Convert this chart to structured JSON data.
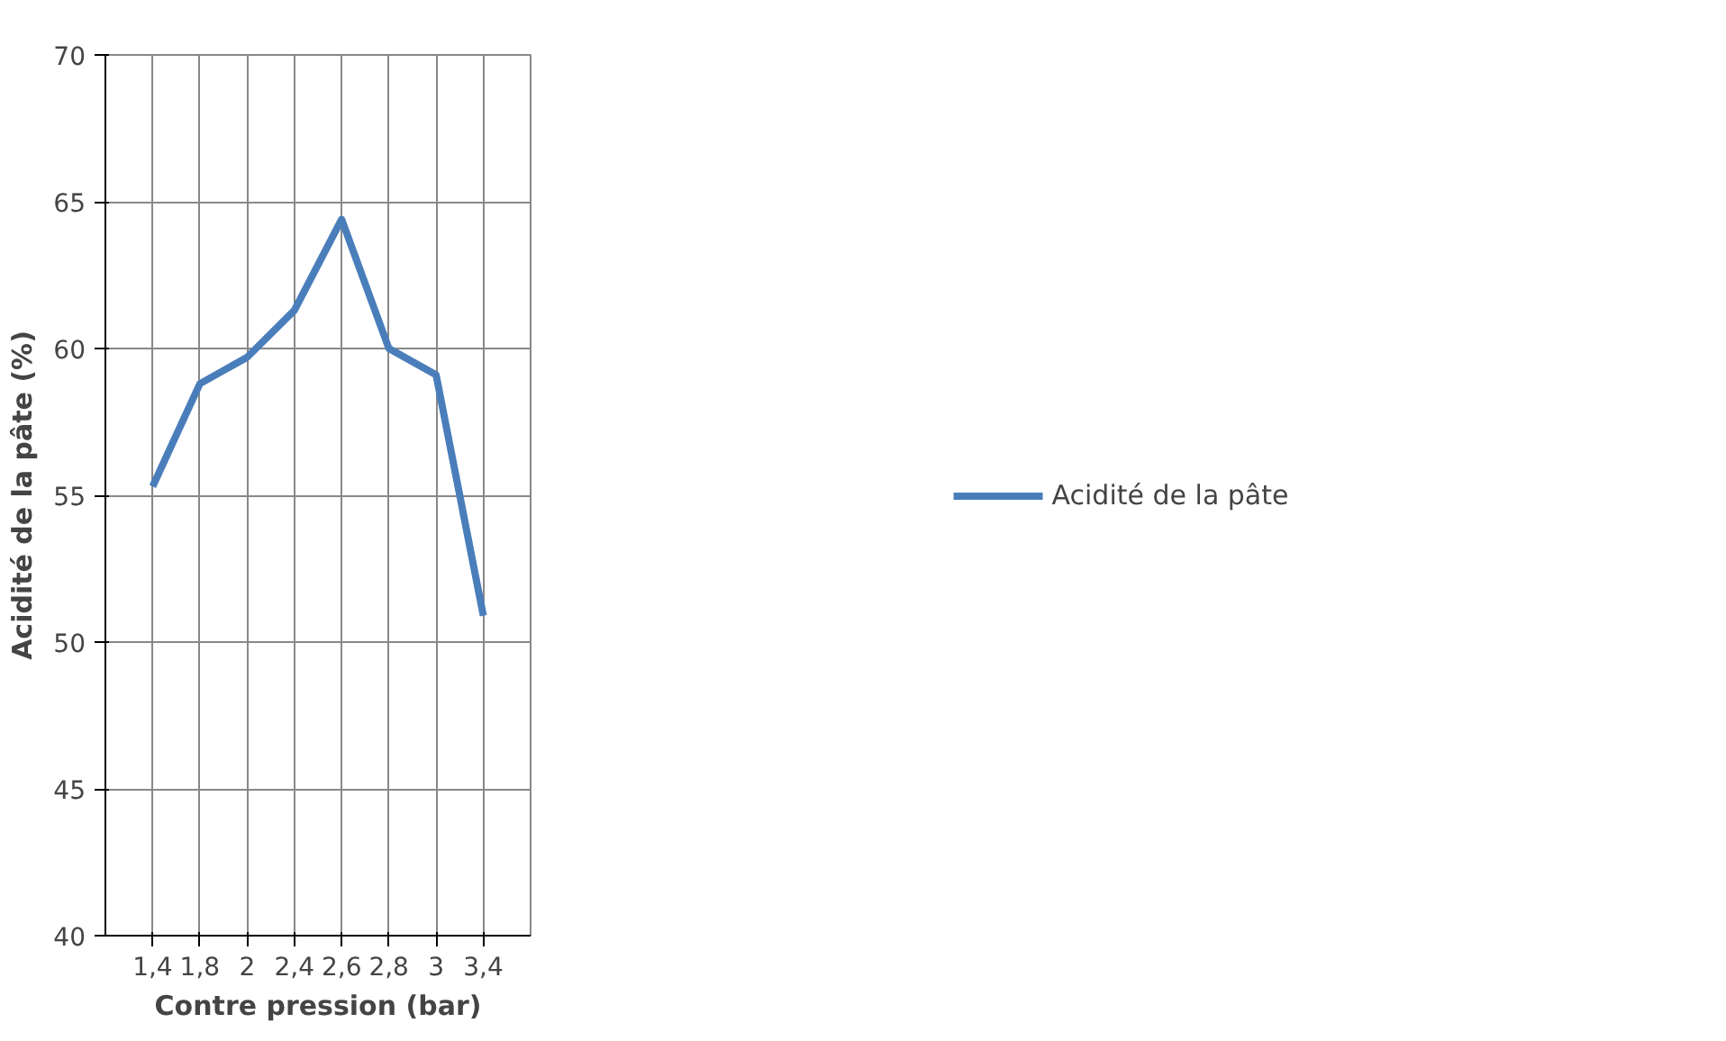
{
  "chart_data": {
    "type": "line",
    "xlabel": "Contre pression (bar)",
    "ylabel": "Acidité de la pâte (%)",
    "categories": [
      "1,4",
      "1,8",
      "2",
      "2,4",
      "2,6",
      "2,8",
      "3",
      "3,4"
    ],
    "series": [
      {
        "name": "Acidité de la pâte",
        "color": "#4a7ebb",
        "values": [
          55.3,
          58.8,
          59.7,
          61.3,
          64.4,
          60.0,
          59.1,
          50.9
        ]
      }
    ],
    "ylim": [
      40,
      70
    ],
    "yticks": [
      40,
      45,
      50,
      55,
      60,
      65,
      70
    ],
    "grid": true,
    "legend": "right",
    "marker": "none"
  }
}
